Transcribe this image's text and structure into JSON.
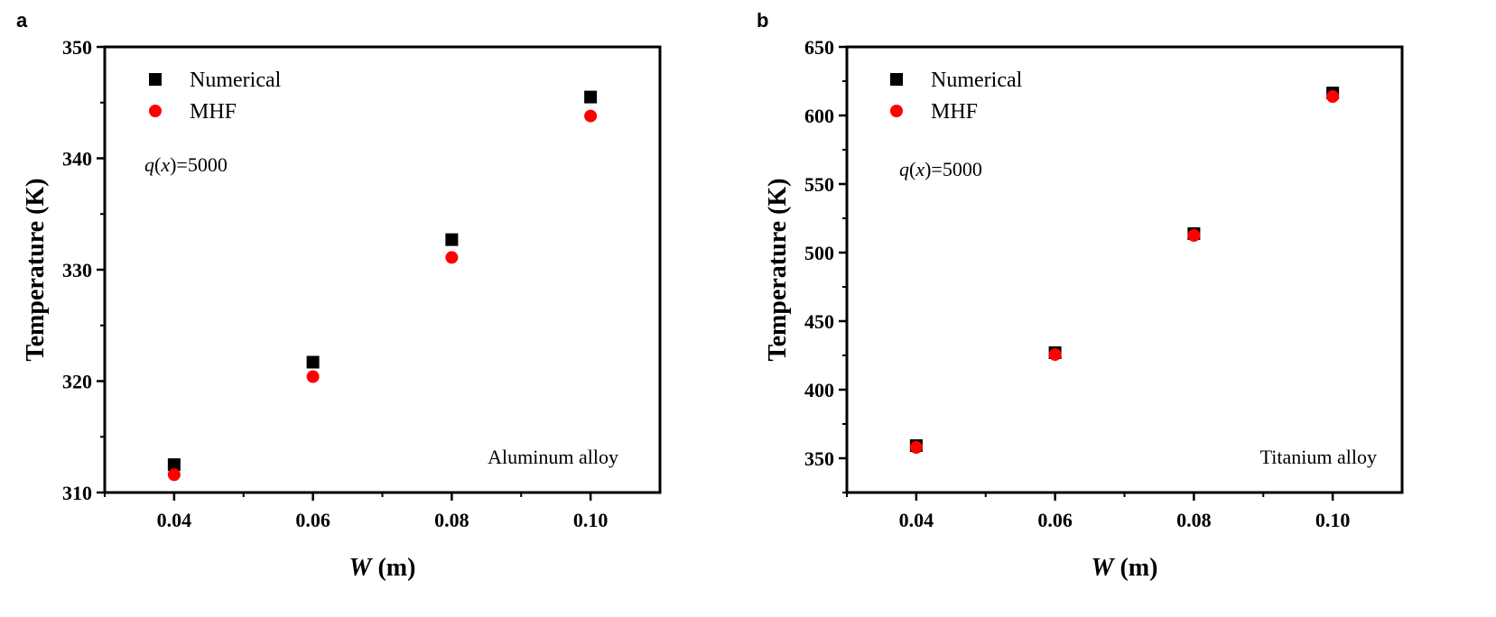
{
  "chart_data": [
    {
      "type": "scatter",
      "panel_label": "a",
      "xlabel_var": "W",
      "xlabel_unit": " (m)",
      "ylabel": "Temperature (K)",
      "xlim": [
        0.03,
        0.11
      ],
      "ylim": [
        310,
        350
      ],
      "xticks": [
        "0.04",
        "0.06",
        "0.08",
        "0.10"
      ],
      "yticks": [
        "310",
        "320",
        "330",
        "340",
        "350"
      ],
      "x": [
        0.04,
        0.06,
        0.08,
        0.1
      ],
      "series": [
        {
          "name": "Numerical",
          "marker": "square",
          "color": "#000000",
          "values": [
            312.5,
            321.7,
            332.7,
            345.5
          ]
        },
        {
          "name": "MHF",
          "marker": "circle",
          "color": "#ff0000",
          "values": [
            311.6,
            320.4,
            331.1,
            343.8
          ]
        }
      ],
      "annotation_q": "q",
      "annotation_x": "x",
      "annotation_value": "=5000",
      "material": "Aluminum alloy",
      "legend": "top-left",
      "grid": false
    },
    {
      "type": "scatter",
      "panel_label": "b",
      "xlabel_var": "W",
      "xlabel_unit": " (m)",
      "ylabel": "Temperature (K)",
      "xlim": [
        0.03,
        0.11
      ],
      "ylim": [
        325,
        650
      ],
      "xticks": [
        "0.04",
        "0.06",
        "0.08",
        "0.10"
      ],
      "yticks": [
        "350",
        "400",
        "450",
        "500",
        "550",
        "600",
        "650"
      ],
      "x": [
        0.04,
        0.06,
        0.08,
        0.1
      ],
      "series": [
        {
          "name": "Numerical",
          "marker": "square",
          "color": "#000000",
          "values": [
            359.2,
            427.0,
            513.8,
            616.4
          ]
        },
        {
          "name": "MHF",
          "marker": "circle",
          "color": "#ff0000",
          "values": [
            357.9,
            425.6,
            512.5,
            613.8
          ]
        }
      ],
      "annotation_q": "q",
      "annotation_x": "x",
      "annotation_value": "=5000",
      "material": "Titanium alloy",
      "legend": "top-left",
      "grid": false
    }
  ]
}
